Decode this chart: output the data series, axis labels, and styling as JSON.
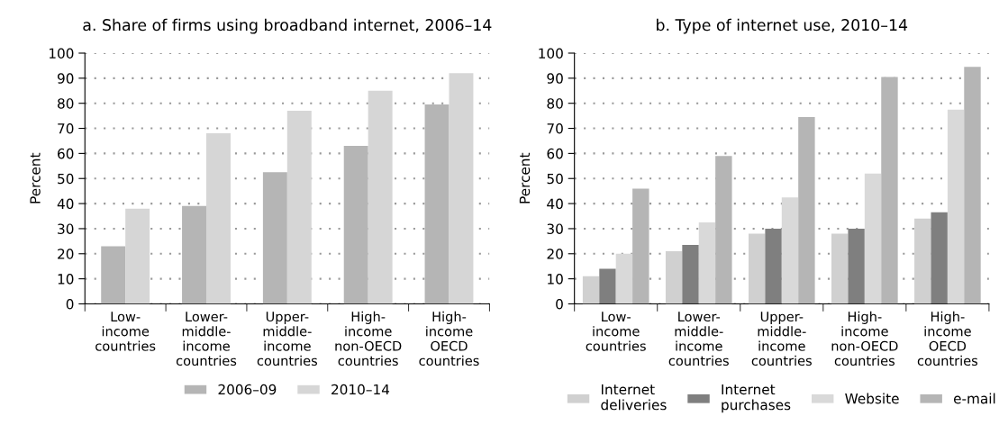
{
  "chart_data": [
    {
      "type": "bar",
      "title": "a. Share of firms using broadband internet, 2006–14",
      "ylabel": "Percent",
      "categories": [
        "Low-\nincome\ncountries",
        "Lower-\nmiddle-\nincome\ncountries",
        "Upper-\nmiddle-\nincome\ncountries",
        "High-\nincome\nnon-OECD\ncountries",
        "High-\nincome\nOECD\ncountries"
      ],
      "series": [
        {
          "name": "2006–09",
          "color": "#b5b5b5",
          "values": [
            23,
            39,
            52.5,
            63,
            79.5
          ]
        },
        {
          "name": "2010–14",
          "color": "#d6d6d6",
          "values": [
            38,
            68,
            77,
            85,
            92
          ]
        }
      ],
      "ylim": [
        0,
        100
      ],
      "yticks": [
        0,
        10,
        20,
        30,
        40,
        50,
        60,
        70,
        80,
        90,
        100
      ],
      "grid": "y",
      "legend": "bottom"
    },
    {
      "type": "bar",
      "title": "b. Type of internet use, 2010–14",
      "ylabel": "Percent",
      "categories": [
        "Low-\nincome\ncountries",
        "Lower-\nmiddle-\nincome\ncountries",
        "Upper-\nmiddle-\nincome\ncountries",
        "High-\nincome\nnon-OECD\ncountries",
        "High-\nincome\nOECD\ncountries"
      ],
      "series": [
        {
          "name": "Internet\ndeliveries",
          "color": "#d0d0d0",
          "values": [
            11,
            21,
            28,
            28,
            34
          ]
        },
        {
          "name": "Internet\npurchases",
          "color": "#7f7f7f",
          "values": [
            14,
            23.5,
            30,
            30,
            36.5
          ]
        },
        {
          "name": "Website",
          "color": "#d9d9d9",
          "values": [
            20,
            32.5,
            42.5,
            52,
            77.5
          ]
        },
        {
          "name": "e-mail",
          "color": "#b5b5b5",
          "values": [
            46,
            59,
            74.5,
            90.5,
            94.5
          ]
        }
      ],
      "ylim": [
        0,
        100
      ],
      "yticks": [
        0,
        10,
        20,
        30,
        40,
        50,
        60,
        70,
        80,
        90,
        100
      ],
      "grid": "y",
      "legend": "bottom"
    }
  ]
}
